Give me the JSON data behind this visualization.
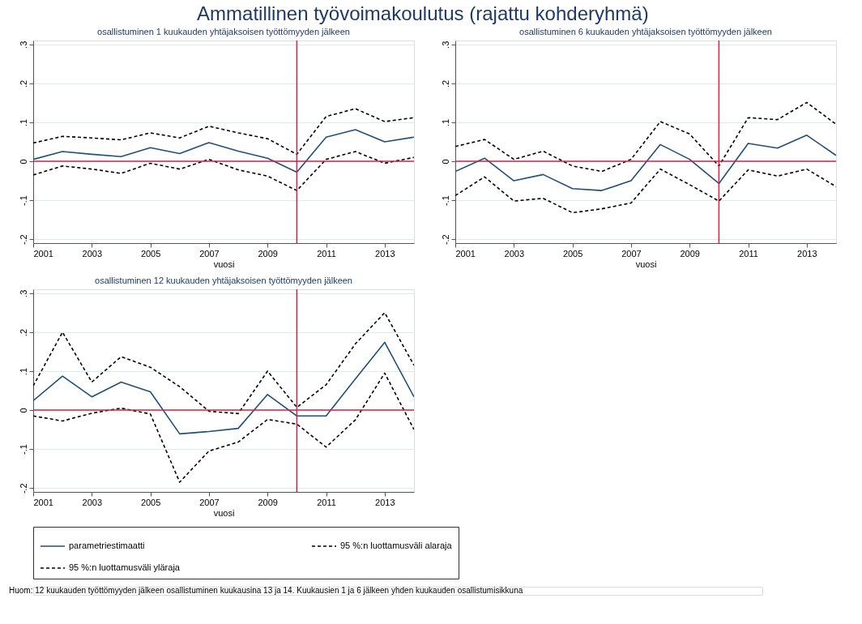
{
  "chart_data": [
    {
      "type": "line",
      "title": "Ammatillinen työvoimakoulutus (rajattu kohderyhmä)",
      "subtitle": "osallistuminen 1 kuukauden yhtäjaksoisen työttömyyden jälkeen",
      "xlabel": "vuosi",
      "x": [
        2001,
        2002,
        2003,
        2004,
        2005,
        2006,
        2007,
        2008,
        2009,
        2010,
        2011,
        2012,
        2013,
        2014
      ],
      "series": [
        {
          "color": "#1f4f7a",
          "line_style": "solid",
          "values": [
            0.005,
            0.025,
            0.018,
            0.012,
            0.035,
            0.02,
            0.048,
            0.026,
            0.008,
            -0.028,
            0.062,
            0.081,
            0.05,
            0.062
          ]
        },
        {
          "color": "#000000",
          "line_style": "dashed",
          "values": [
            -0.035,
            -0.012,
            -0.02,
            -0.031,
            -0.005,
            -0.02,
            0.005,
            -0.022,
            -0.038,
            -0.075,
            0.005,
            0.025,
            -0.005,
            0.01
          ]
        },
        {
          "color": "#000000",
          "line_style": "dashed",
          "values": [
            0.047,
            0.064,
            0.06,
            0.055,
            0.073,
            0.06,
            0.09,
            0.073,
            0.058,
            0.018,
            0.115,
            0.135,
            0.102,
            0.112
          ]
        }
      ],
      "xlim": [
        2001,
        2014
      ],
      "xticks": [
        2001,
        2003,
        2005,
        2007,
        2009,
        2011,
        2013
      ],
      "ylim": [
        -0.21,
        0.31
      ],
      "yticks": [
        {
          "value": -0.2,
          "label": "-.2"
        },
        {
          "value": -0.1,
          "label": "-.1"
        },
        0,
        {
          "value": 0.1,
          "label": ".1"
        },
        {
          "value": 0.2,
          "label": ".2"
        },
        {
          "value": 0.3,
          "label": ".3"
        }
      ],
      "ref_lines": [
        {
          "axis": "y",
          "value": 0,
          "color": "#d6224a"
        },
        {
          "axis": "x",
          "value": 2010,
          "color": "#d6224a"
        }
      ],
      "grid": "y",
      "legend": false
    },
    {
      "type": "line",
      "subtitle": "osallistuminen 6 kuukauden yhtäjaksoisen työttömyyden jälkeen",
      "xlabel": "vuosi",
      "x": [
        2001,
        2002,
        2003,
        2004,
        2005,
        2006,
        2007,
        2008,
        2009,
        2010,
        2011,
        2012,
        2013,
        2014
      ],
      "series": [
        {
          "color": "#1f4f7a",
          "line_style": "solid",
          "values": [
            -0.026,
            0.008,
            -0.05,
            -0.034,
            -0.07,
            -0.075,
            -0.05,
            0.043,
            0.005,
            -0.057,
            0.046,
            0.034,
            0.067,
            0.015
          ]
        },
        {
          "color": "#000000",
          "line_style": "dashed",
          "values": [
            -0.088,
            -0.04,
            -0.102,
            -0.095,
            -0.132,
            -0.122,
            -0.107,
            -0.02,
            -0.06,
            -0.102,
            -0.022,
            -0.038,
            -0.02,
            -0.065
          ]
        },
        {
          "color": "#000000",
          "line_style": "dashed",
          "values": [
            0.038,
            0.056,
            0.005,
            0.026,
            -0.012,
            -0.026,
            0.005,
            0.102,
            0.07,
            -0.012,
            0.112,
            0.107,
            0.151,
            0.095
          ]
        }
      ],
      "xlim": [
        2001,
        2014
      ],
      "xticks": [
        2001,
        2003,
        2005,
        2007,
        2009,
        2011,
        2013
      ],
      "ylim": [
        -0.21,
        0.31
      ],
      "yticks": [
        {
          "value": -0.2,
          "label": "-.2"
        },
        {
          "value": -0.1,
          "label": "-.1"
        },
        0,
        {
          "value": 0.1,
          "label": ".1"
        },
        {
          "value": 0.2,
          "label": ".2"
        },
        {
          "value": 0.3,
          "label": ".3"
        }
      ],
      "ref_lines": [
        {
          "axis": "y",
          "value": 0,
          "color": "#d6224a"
        },
        {
          "axis": "x",
          "value": 2010,
          "color": "#d6224a"
        }
      ],
      "grid": "y",
      "legend": false
    },
    {
      "type": "line",
      "subtitle": "osallistuminen 12 kuukauden yhtäjaksoisen työttömyyden jälkeen",
      "xlabel": "vuosi",
      "x": [
        2001,
        2002,
        2003,
        2004,
        2005,
        2006,
        2007,
        2008,
        2009,
        2010,
        2011,
        2012,
        2013,
        2014
      ],
      "series": [
        {
          "name": "parametriestimaatti",
          "color": "#1f4f7a",
          "line_style": "solid",
          "values": [
            0.024,
            0.087,
            0.034,
            0.072,
            0.047,
            -0.061,
            -0.055,
            -0.047,
            0.04,
            -0.015,
            -0.015,
            0.08,
            0.174,
            0.034
          ]
        },
        {
          "name": "95 %:n luottamusväli alaraja",
          "color": "#000000",
          "line_style": "dashed",
          "values": [
            -0.015,
            -0.028,
            -0.008,
            0.005,
            -0.01,
            -0.185,
            -0.105,
            -0.082,
            -0.024,
            -0.036,
            -0.095,
            -0.025,
            0.095,
            -0.05
          ]
        },
        {
          "name": "95 %:n luottamusväli yläraja",
          "color": "#000000",
          "line_style": "dashed",
          "values": [
            0.062,
            0.2,
            0.072,
            0.137,
            0.11,
            0.06,
            -0.003,
            -0.009,
            0.1,
            0.007,
            0.065,
            0.17,
            0.25,
            0.115
          ]
        }
      ],
      "xlim": [
        2001,
        2014
      ],
      "xticks": [
        2001,
        2003,
        2005,
        2007,
        2009,
        2011,
        2013
      ],
      "ylim": [
        -0.21,
        0.31
      ],
      "yticks": [
        {
          "value": -0.2,
          "label": "-.2"
        },
        {
          "value": -0.1,
          "label": "-.1"
        },
        0,
        {
          "value": 0.1,
          "label": ".1"
        },
        {
          "value": 0.2,
          "label": ".2"
        },
        {
          "value": 0.3,
          "label": ".3"
        }
      ],
      "ref_lines": [
        {
          "axis": "y",
          "value": 0,
          "color": "#d6224a"
        },
        {
          "axis": "x",
          "value": 2010,
          "color": "#d6224a"
        }
      ],
      "grid": "y",
      "legend": "bottom",
      "annotations": [
        "Huom: 12 kuukauden työttömyyden jälkeen osallistuminen kuukausina 13 ja 14. Kuukausien 1 ja 6 jälkeen yhden kuukauden osallistumisikkuna"
      ]
    }
  ]
}
